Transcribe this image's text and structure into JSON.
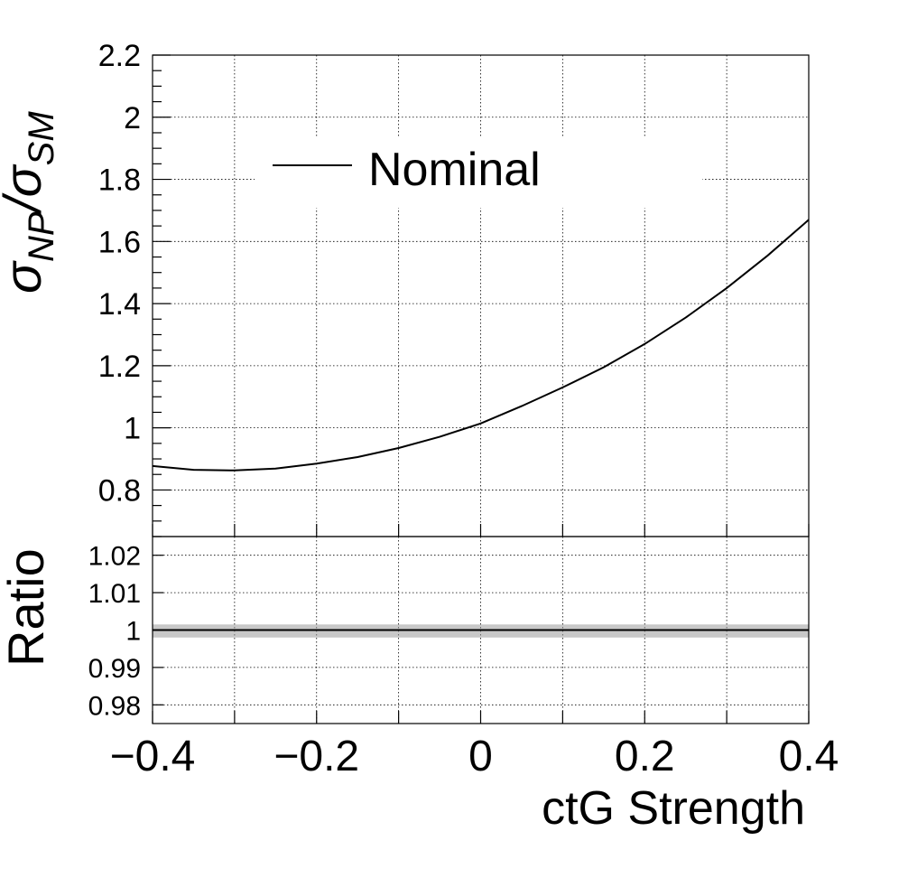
{
  "chart_data": [
    {
      "type": "line",
      "xlabel": "",
      "ylabel_main": "σ",
      "ylabel_sub1": "NP",
      "ylabel_slash": "/σ",
      "ylabel_sub2": "SM",
      "xlim": [
        -0.4,
        0.4
      ],
      "ylim": [
        0.65,
        2.2
      ],
      "grid": true,
      "legend": {
        "placement": "top-left",
        "entries": [
          "Nominal"
        ]
      },
      "yticks": [
        0.8,
        1,
        1.2,
        1.4,
        1.6,
        1.8,
        2,
        2.2
      ],
      "ytick_labels": [
        "0.8",
        "1",
        "1.2",
        "1.4",
        "1.6",
        "1.8",
        "2",
        "2.2"
      ],
      "series": [
        {
          "name": "Nominal",
          "x": [
            -0.4,
            -0.35,
            -0.3,
            -0.25,
            -0.2,
            -0.15,
            -0.1,
            -0.05,
            0,
            0.05,
            0.1,
            0.15,
            0.2,
            0.25,
            0.3,
            0.35,
            0.4
          ],
          "y": [
            0.877,
            0.865,
            0.863,
            0.869,
            0.885,
            0.906,
            0.935,
            0.971,
            1.014,
            1.07,
            1.13,
            1.195,
            1.27,
            1.355,
            1.45,
            1.555,
            1.67
          ]
        }
      ]
    },
    {
      "type": "line",
      "xlabel": "ctG Strength",
      "ylabel": "Ratio",
      "xlim": [
        -0.4,
        0.4
      ],
      "ylim": [
        0.975,
        1.025
      ],
      "grid": true,
      "xticks": [
        -0.4,
        -0.2,
        0,
        0.2,
        0.4
      ],
      "xtick_labels": [
        "−0.4",
        "−0.2",
        "0",
        "0.2",
        "0.4"
      ],
      "yticks": [
        0.98,
        0.99,
        1,
        1.01,
        1.02
      ],
      "ytick_labels": [
        "0.98",
        "0.99",
        "1",
        "1.01",
        "1.02"
      ],
      "series": [
        {
          "x": [
            -0.4,
            0.4
          ],
          "y": [
            1.0,
            1.0
          ],
          "band": [
            0.998,
            1.0015
          ]
        }
      ]
    }
  ]
}
